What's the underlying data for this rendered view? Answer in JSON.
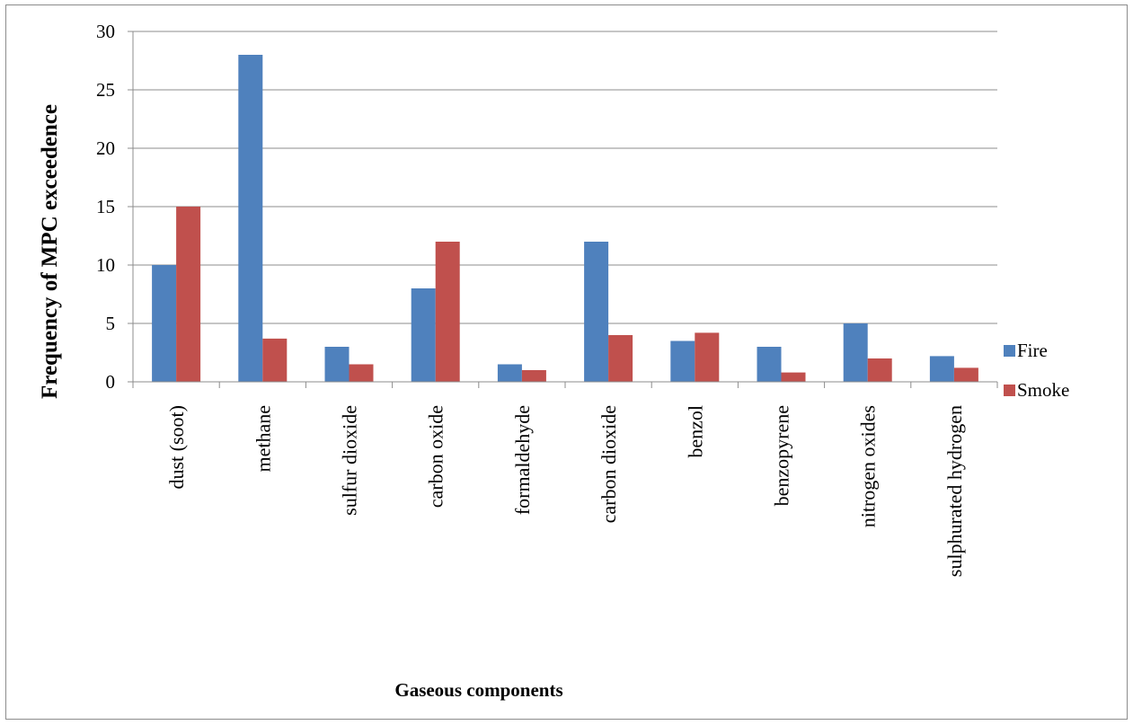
{
  "chart_data": {
    "type": "bar",
    "categories": [
      "dust (soot)",
      "methane",
      "sulfur dioxide",
      "carbon oxide",
      "formaldehyde",
      "carbon dioxide",
      "benzol",
      "benzopyrene",
      "nitrogen oxides",
      "sulphurated hydrogen"
    ],
    "series": [
      {
        "name": "Fire",
        "color": "#4F81BD",
        "values": [
          10,
          28,
          3,
          8,
          1.5,
          12,
          3.5,
          3,
          5,
          2.2
        ]
      },
      {
        "name": "Smoke",
        "color": "#C0504D",
        "values": [
          15,
          3.7,
          1.5,
          12,
          1,
          4,
          4.2,
          0.8,
          2,
          1.2
        ]
      }
    ],
    "xlabel": "Gaseous components",
    "ylabel": "Frequency of MPC exceedence",
    "ylim": [
      0,
      30
    ],
    "yticks": [
      0,
      5,
      10,
      15,
      20,
      25,
      30
    ],
    "grid": true,
    "legend_position": "right"
  }
}
